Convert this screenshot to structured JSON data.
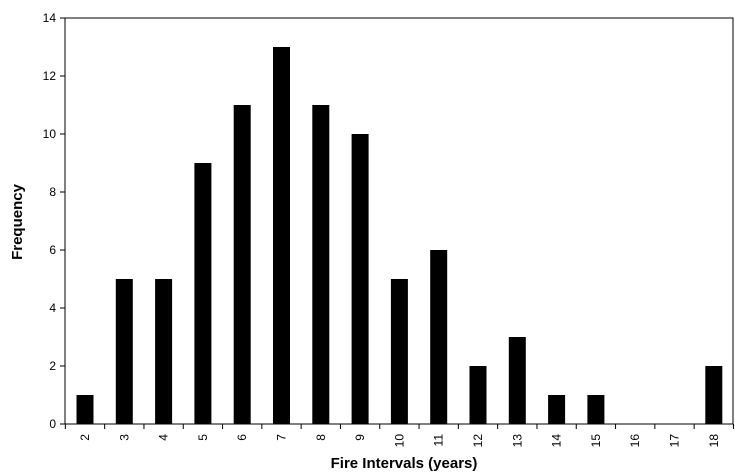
{
  "chart_data": {
    "type": "bar",
    "title": "",
    "xlabel": "Fire Intervals (years)",
    "ylabel": "Frequency",
    "categories": [
      "2",
      "3",
      "4",
      "5",
      "6",
      "7",
      "8",
      "9",
      "10",
      "11",
      "12",
      "13",
      "14",
      "15",
      "16",
      "17",
      "18"
    ],
    "values": [
      1,
      5,
      5,
      9,
      11,
      13,
      11,
      10,
      5,
      6,
      2,
      3,
      1,
      1,
      0,
      0,
      2
    ],
    "ylim": [
      0,
      14
    ],
    "yticks": [
      0,
      2,
      4,
      6,
      8,
      10,
      12,
      14
    ],
    "grid": false,
    "legend": "none",
    "bar_color": "#000000",
    "xtick_rotation": "vertical"
  }
}
